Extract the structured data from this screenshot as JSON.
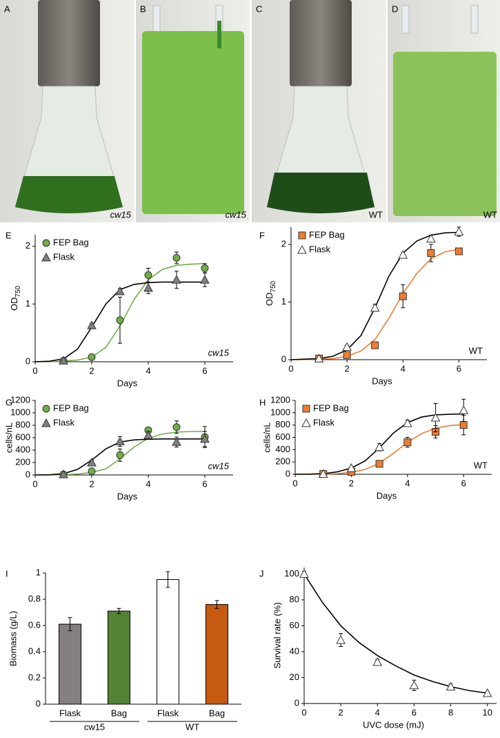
{
  "photos": [
    {
      "label": "A",
      "caption": "cw15",
      "italic": true
    },
    {
      "label": "B",
      "caption": "cw15",
      "italic": true
    },
    {
      "label": "C",
      "caption": "WT",
      "italic": false
    },
    {
      "label": "D",
      "caption": "WT",
      "italic": false
    }
  ],
  "chart_data": [
    {
      "type": "line",
      "panel": "E",
      "xlabel": "Days",
      "ylabel": [
        "OD",
        "750"
      ],
      "annotation": "cw15",
      "italic": true,
      "xlim": [
        0,
        7
      ],
      "ylim": [
        0,
        2.2
      ],
      "xticks": [
        0,
        2,
        4,
        6
      ],
      "yticks": [
        0,
        1,
        2
      ],
      "legend": "upper left",
      "x": [
        1,
        2,
        3,
        4,
        5,
        6
      ],
      "series": [
        {
          "name": "FEP Bag",
          "color": "#70ad47",
          "marker": "circle",
          "values": [
            0.02,
            0.08,
            0.72,
            1.5,
            1.8,
            1.62
          ],
          "errors": [
            0.02,
            0.02,
            0.4,
            0.12,
            0.1,
            0.08
          ]
        },
        {
          "name": "Flask",
          "color": "#808080",
          "marker": "triangle",
          "values": [
            0.02,
            0.63,
            1.22,
            1.28,
            1.42,
            1.42
          ],
          "errors": [
            0.01,
            0.03,
            0.05,
            0.1,
            0.15,
            0.12
          ]
        }
      ],
      "fits": [
        {
          "color": "#70ad47",
          "x": [
            0,
            0.5,
            1,
            1.5,
            2,
            2.5,
            3,
            3.5,
            4,
            4.5,
            5,
            5.5,
            6
          ],
          "values": [
            0,
            0,
            0.01,
            0.03,
            0.08,
            0.25,
            0.62,
            1.08,
            1.42,
            1.6,
            1.67,
            1.69,
            1.7
          ]
        },
        {
          "color": "#000000",
          "x": [
            0,
            0.5,
            1,
            1.5,
            2,
            2.5,
            3,
            3.5,
            4,
            4.5,
            5,
            5.5,
            6
          ],
          "values": [
            0,
            0.01,
            0.05,
            0.22,
            0.6,
            1.0,
            1.25,
            1.34,
            1.37,
            1.38,
            1.38,
            1.38,
            1.38
          ]
        }
      ]
    },
    {
      "type": "line",
      "panel": "F",
      "xlabel": "Days",
      "ylabel": [
        "OD",
        "750"
      ],
      "annotation": "WT",
      "italic": false,
      "xlim": [
        0,
        7
      ],
      "ylim": [
        0,
        2.3
      ],
      "xticks": [
        0,
        2,
        4,
        6
      ],
      "yticks": [
        0,
        1,
        2
      ],
      "legend": "upper left",
      "x": [
        1,
        2,
        3,
        4,
        5,
        6
      ],
      "series": [
        {
          "name": "FEP Bag",
          "color": "#ed7d31",
          "marker": "square",
          "values": [
            0.02,
            0.08,
            0.25,
            1.1,
            1.85,
            1.88
          ],
          "errors": [
            0.01,
            0.03,
            0.03,
            0.2,
            0.15,
            0.05
          ]
        },
        {
          "name": "Flask",
          "color": "#ffffff",
          "marker": "triangle",
          "values": [
            0.02,
            0.22,
            0.9,
            1.82,
            2.1,
            2.22
          ],
          "errors": [
            0.01,
            0.03,
            0.06,
            0.04,
            0.06,
            0.08
          ]
        }
      ],
      "fits": [
        {
          "color": "#ed7d31",
          "x": [
            0,
            0.5,
            1,
            1.5,
            2,
            2.5,
            3,
            3.5,
            4,
            4.5,
            5,
            5.5,
            6
          ],
          "values": [
            0,
            0,
            0.01,
            0.02,
            0.06,
            0.15,
            0.35,
            0.72,
            1.15,
            1.5,
            1.75,
            1.87,
            1.92
          ]
        },
        {
          "color": "#000000",
          "x": [
            0,
            0.5,
            1,
            1.5,
            2,
            2.5,
            3,
            3.5,
            4,
            4.5,
            5,
            5.5,
            6
          ],
          "values": [
            0,
            0.01,
            0.02,
            0.06,
            0.17,
            0.42,
            0.9,
            1.45,
            1.85,
            2.06,
            2.16,
            2.2,
            2.21
          ]
        }
      ]
    },
    {
      "type": "line",
      "panel": "G",
      "xlabel": "Days",
      "ylabel": "cells/nL",
      "annotation": "cw15",
      "italic": true,
      "xlim": [
        0,
        7
      ],
      "ylim": [
        0,
        1200
      ],
      "xticks": [
        0,
        2,
        4,
        6
      ],
      "yticks": [
        0,
        200,
        400,
        600,
        800,
        1000,
        1200
      ],
      "legend": "upper left",
      "x": [
        1,
        2,
        3,
        4,
        5,
        6
      ],
      "series": [
        {
          "name": "FEP Bag",
          "color": "#70ad47",
          "marker": "circle",
          "values": [
            10,
            60,
            320,
            720,
            770,
            610
          ],
          "errors": [
            5,
            10,
            100,
            40,
            100,
            170
          ]
        },
        {
          "name": "Flask",
          "color": "#808080",
          "marker": "triangle",
          "values": [
            10,
            200,
            540,
            640,
            530,
            580
          ],
          "errors": [
            5,
            40,
            80,
            60,
            80,
            120
          ]
        }
      ],
      "fits": [
        {
          "color": "#70ad47",
          "x": [
            0,
            0.5,
            1,
            1.5,
            2,
            2.5,
            3,
            3.5,
            4,
            4.5,
            5,
            5.5,
            6
          ],
          "values": [
            0,
            0,
            5,
            15,
            40,
            100,
            260,
            450,
            590,
            660,
            690,
            700,
            700
          ]
        },
        {
          "color": "#000000",
          "x": [
            0,
            0.5,
            1,
            1.5,
            2,
            2.5,
            3,
            3.5,
            4,
            4.5,
            5,
            5.5,
            6
          ],
          "values": [
            0,
            3,
            20,
            90,
            240,
            420,
            530,
            565,
            575,
            580,
            580,
            580,
            580
          ]
        }
      ]
    },
    {
      "type": "line",
      "panel": "H",
      "xlabel": "Days",
      "ylabel": "cells/nL",
      "annotation": "WT",
      "italic": false,
      "xlim": [
        0,
        7
      ],
      "ylim": [
        0,
        1200
      ],
      "xticks": [
        0,
        2,
        4,
        6
      ],
      "yticks": [
        0,
        200,
        400,
        600,
        800,
        1000,
        1200
      ],
      "legend": "upper left",
      "x": [
        1,
        2,
        3,
        4,
        5,
        6
      ],
      "series": [
        {
          "name": "FEP Bag",
          "color": "#ed7d31",
          "marker": "square",
          "values": [
            5,
            40,
            170,
            520,
            690,
            800
          ],
          "errors": [
            5,
            10,
            30,
            80,
            100,
            160
          ]
        },
        {
          "name": "Flask",
          "color": "#ffffff",
          "marker": "triangle",
          "values": [
            5,
            100,
            440,
            830,
            920,
            1040
          ],
          "errors": [
            5,
            20,
            60,
            50,
            230,
            180
          ]
        }
      ],
      "fits": [
        {
          "color": "#ed7d31",
          "x": [
            0,
            0.5,
            1,
            1.5,
            2,
            2.5,
            3,
            3.5,
            4,
            4.5,
            5,
            5.5,
            6
          ],
          "values": [
            0,
            0,
            3,
            10,
            30,
            80,
            180,
            340,
            520,
            660,
            750,
            790,
            810
          ]
        },
        {
          "color": "#000000",
          "x": [
            0,
            0.5,
            1,
            1.5,
            2,
            2.5,
            3,
            3.5,
            4,
            4.5,
            5,
            5.5,
            6
          ],
          "values": [
            0,
            2,
            10,
            40,
            100,
            220,
            430,
            670,
            840,
            930,
            965,
            975,
            980
          ]
        }
      ]
    },
    {
      "type": "bar",
      "panel": "I",
      "ylabel": "Biomass (g/L)",
      "ylim": [
        0,
        1
      ],
      "yticks": [
        0,
        0.2,
        0.4,
        0.6,
        0.8,
        1
      ],
      "categories": [
        "Flask",
        "Bag",
        "Flask",
        "Bag"
      ],
      "groups": [
        "cw15",
        "WT"
      ],
      "values": [
        0.61,
        0.71,
        0.95,
        0.76
      ],
      "errors": [
        0.05,
        0.02,
        0.06,
        0.03
      ],
      "colors": [
        "#857f7f",
        "#548235",
        "#ffffff",
        "#c55a11"
      ]
    },
    {
      "type": "scatter",
      "panel": "J",
      "xlabel": "UVC dose (mJ)",
      "ylabel": "Survival rate (%)",
      "xlim": [
        0,
        10.5
      ],
      "ylim": [
        0,
        105
      ],
      "xticks": [
        0,
        2,
        4,
        6,
        8,
        10
      ],
      "yticks": [
        0,
        20,
        40,
        60,
        80,
        100
      ],
      "x": [
        0,
        2,
        4,
        6,
        8,
        10
      ],
      "series": [
        {
          "color": "#ffffff",
          "marker": "triangle",
          "values": [
            100,
            49,
            32,
            14,
            13,
            8
          ],
          "errors": [
            2,
            5,
            2,
            4,
            2,
            1
          ]
        }
      ],
      "fits": [
        {
          "color": "#000000",
          "x": [
            0,
            1,
            2,
            3,
            4,
            5,
            6,
            7,
            8,
            9,
            10
          ],
          "values": [
            100,
            78,
            60,
            47,
            37,
            29,
            22,
            17,
            13,
            10,
            8
          ]
        }
      ]
    }
  ]
}
